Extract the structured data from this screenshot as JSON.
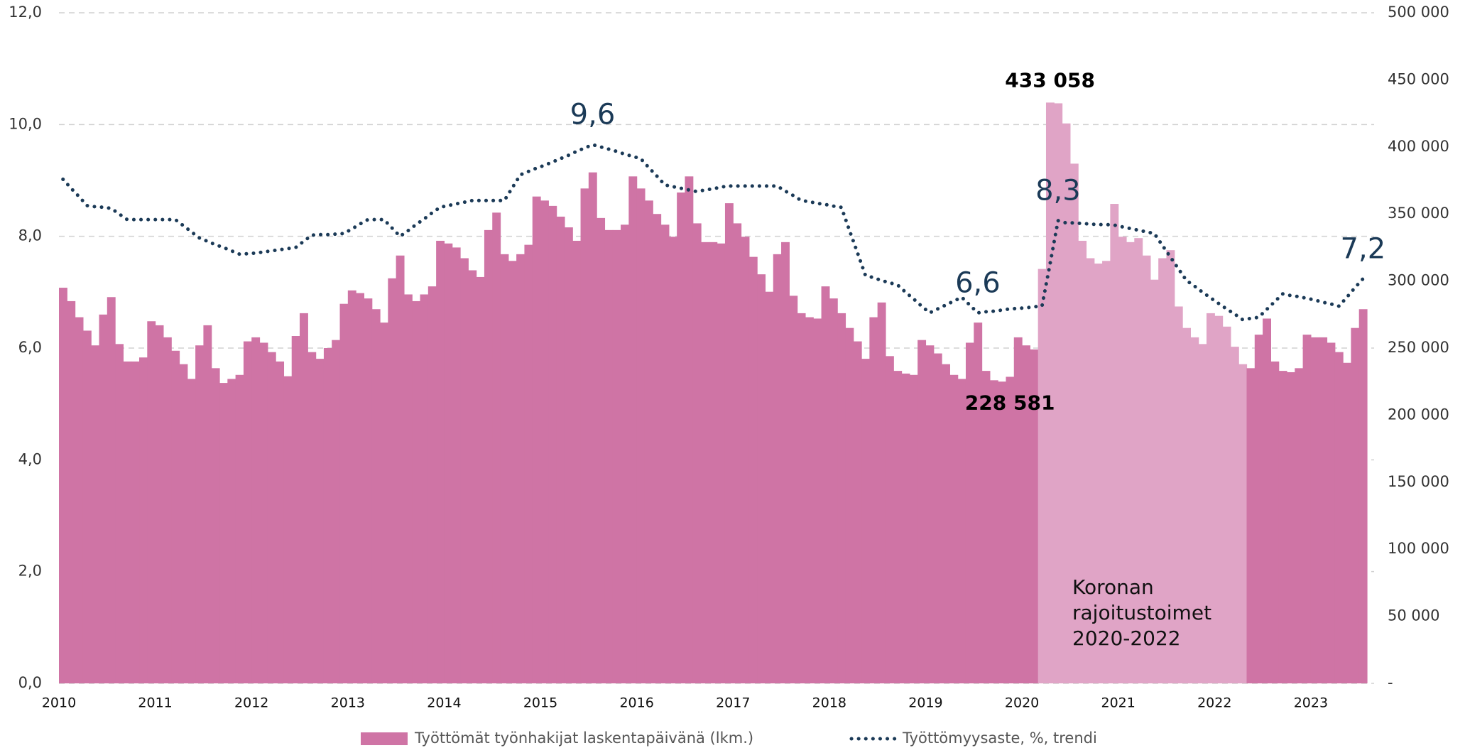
{
  "chart_data": {
    "type": "bar",
    "categories": [
      "2010",
      null,
      null,
      null,
      null,
      null,
      null,
      null,
      null,
      null,
      null,
      null,
      "2011",
      null,
      null,
      null,
      null,
      null,
      null,
      null,
      null,
      null,
      null,
      null,
      "2012",
      null,
      null,
      null,
      null,
      null,
      null,
      null,
      null,
      null,
      null,
      null,
      "2013",
      null,
      null,
      null,
      null,
      null,
      null,
      null,
      null,
      null,
      null,
      null,
      "2014",
      null,
      null,
      null,
      null,
      null,
      null,
      null,
      null,
      null,
      null,
      null,
      "2015",
      null,
      null,
      null,
      null,
      null,
      null,
      null,
      null,
      null,
      null,
      null,
      "2016",
      null,
      null,
      null,
      null,
      null,
      null,
      null,
      null,
      null,
      null,
      null,
      "2017",
      null,
      null,
      null,
      null,
      null,
      null,
      null,
      null,
      null,
      null,
      null,
      "2018",
      null,
      null,
      null,
      null,
      null,
      null,
      null,
      null,
      null,
      null,
      null,
      "2019",
      null,
      null,
      null,
      null,
      null,
      null,
      null,
      null,
      null,
      null,
      null,
      "2020",
      null,
      null,
      null,
      null,
      null,
      null,
      null,
      null,
      null,
      null,
      null,
      "2021",
      null,
      null,
      null,
      null,
      null,
      null,
      null,
      null,
      null,
      null,
      null,
      "2022",
      null,
      null,
      null,
      null,
      null,
      null,
      null,
      null,
      null,
      null,
      null,
      "2023",
      null,
      null,
      null,
      null,
      null,
      null
    ],
    "ylim": [
      0,
      12
    ],
    "yticks": [
      {
        "value": 0,
        "label": "0,0"
      },
      {
        "value": 2,
        "label": "2,0"
      },
      {
        "value": 4,
        "label": "4,0"
      },
      {
        "value": 6,
        "label": "6,0"
      },
      {
        "value": 8,
        "label": "8,0"
      },
      {
        "value": 10,
        "label": "10,0"
      },
      {
        "value": 12,
        "label": "12,0"
      }
    ],
    "y2lim": [
      0,
      500000
    ],
    "y2ticks": [
      {
        "value": 0,
        "label": "-"
      },
      {
        "value": 50000,
        "label": "50 000"
      },
      {
        "value": 100000,
        "label": "100 000"
      },
      {
        "value": 150000,
        "label": "150 000"
      },
      {
        "value": 200000,
        "label": "200 000"
      },
      {
        "value": 250000,
        "label": "250 000"
      },
      {
        "value": 300000,
        "label": "300 000"
      },
      {
        "value": 350000,
        "label": "350 000"
      },
      {
        "value": 400000,
        "label": "400 000"
      },
      {
        "value": 450000,
        "label": "450 000"
      },
      {
        "value": 500000,
        "label": "500 000"
      }
    ],
    "grid": true,
    "legend": "bottom",
    "annotations": [
      {
        "lines": [
          "Koronan",
          "rajoitustoimet",
          "2020-2022"
        ]
      }
    ],
    "series": [
      {
        "name": "Työttömät työnhakijat laskentapäivänä (lkm.)",
        "type": "bar",
        "axis": "y2",
        "color": "#cf74a5",
        "colors": [
          "#cf74a5",
          "#cf74a5",
          "#cf74a5",
          "#cf74a5",
          "#cf74a5",
          "#cf74a5",
          "#cf74a5",
          "#cf74a5",
          "#cf74a5",
          "#cf74a5",
          "#cf74a5",
          "#cf74a5",
          "#cf74a5",
          "#cf74a5",
          "#cf74a5",
          "#cf74a5",
          "#cf74a5",
          "#cf74a5",
          "#cf74a5",
          "#cf74a5",
          "#cf74a5",
          "#cf74a5",
          "#cf74a5",
          "#cf74a5",
          "#cf74a5",
          "#cf74a5",
          "#cf74a5",
          "#cf74a5",
          "#cf74a5",
          "#cf74a5",
          "#cf74a5",
          "#cf74a5",
          "#cf74a5",
          "#cf74a5",
          "#cf74a5",
          "#cf74a5",
          "#cf74a5",
          "#cf74a5",
          "#cf74a5",
          "#cf74a5",
          "#cf74a5",
          "#cf74a5",
          "#cf74a5",
          "#cf74a5",
          "#cf74a5",
          "#cf74a5",
          "#cf74a5",
          "#cf74a5",
          "#cf74a5",
          "#cf74a5",
          "#cf74a5",
          "#cf74a5",
          "#cf74a5",
          "#cf74a5",
          "#cf74a5",
          "#cf74a5",
          "#cf74a5",
          "#cf74a5",
          "#cf74a5",
          "#cf74a5",
          "#cf74a5",
          "#cf74a5",
          "#cf74a5",
          "#cf74a5",
          "#cf74a5",
          "#cf74a5",
          "#cf74a5",
          "#cf74a5",
          "#cf74a5",
          "#cf74a5",
          "#cf74a5",
          "#cf74a5",
          "#cf74a5",
          "#cf74a5",
          "#cf74a5",
          "#cf74a5",
          "#cf74a5",
          "#cf74a5",
          "#cf74a5",
          "#cf74a5",
          "#cf74a5",
          "#cf74a5",
          "#cf74a5",
          "#cf74a5",
          "#cf74a5",
          "#cf74a5",
          "#cf74a5",
          "#cf74a5",
          "#cf74a5",
          "#cf74a5",
          "#cf74a5",
          "#cf74a5",
          "#cf74a5",
          "#cf74a5",
          "#cf74a5",
          "#cf74a5",
          "#cf74a5",
          "#cf74a5",
          "#cf74a5",
          "#cf74a5",
          "#cf74a5",
          "#cf74a5",
          "#cf74a5",
          "#cf74a5",
          "#cf74a5",
          "#cf74a5",
          "#cf74a5",
          "#cf74a5",
          "#cf74a5",
          "#cf74a5",
          "#cf74a5",
          "#cf74a5",
          "#cf74a5",
          "#cf74a5",
          "#cf74a5",
          "#cf74a5",
          "#cf74a5",
          "#cf74a5",
          "#cf74a5",
          "#cf74a5",
          "#cf74a5",
          "#cf74a5",
          "#e0a4c6",
          "#e0a4c6",
          "#e0a4c6",
          "#e0a4c6",
          "#e0a4c6",
          "#e0a4c6",
          "#e0a4c6",
          "#e0a4c6",
          "#e0a4c6",
          "#e0a4c6",
          "#e0a4c6",
          "#e0a4c6",
          "#e0a4c6",
          "#e0a4c6",
          "#e0a4c6",
          "#e0a4c6",
          "#e0a4c6",
          "#e0a4c6",
          "#e0a4c6",
          "#e0a4c6",
          "#e0a4c6",
          "#e0a4c6",
          "#e0a4c6",
          "#e0a4c6",
          "#e0a4c6",
          "#e0a4c6",
          "#cf74a5",
          "#cf74a5",
          "#cf74a5",
          "#cf74a5",
          "#cf74a5",
          "#cf74a5",
          "#cf74a5",
          "#cf74a5",
          "#cf74a5",
          "#cf74a5",
          "#cf74a5",
          "#cf74a5",
          "#cf74a5",
          "#cf74a5",
          "#cf74a5"
        ],
        "values": [
          295000,
          285000,
          273000,
          263000,
          252000,
          275000,
          288000,
          253000,
          240000,
          240000,
          243000,
          270000,
          267000,
          258000,
          248000,
          238000,
          227000,
          252000,
          267000,
          235000,
          224000,
          227000,
          230000,
          255000,
          258000,
          254000,
          247000,
          240000,
          229000,
          259000,
          276000,
          247000,
          242000,
          250000,
          256000,
          283000,
          293000,
          291000,
          287000,
          279000,
          269000,
          302000,
          319000,
          290000,
          285000,
          290000,
          296000,
          330000,
          328000,
          325000,
          317000,
          308000,
          303000,
          338000,
          351000,
          320000,
          315000,
          320000,
          327000,
          363000,
          360000,
          356000,
          348000,
          340000,
          330000,
          369000,
          381000,
          347000,
          338000,
          338000,
          342000,
          378000,
          369000,
          360000,
          350000,
          342000,
          333000,
          366000,
          378000,
          343000,
          329000,
          329000,
          328000,
          358000,
          343000,
          333000,
          318000,
          305000,
          292000,
          320000,
          329000,
          289000,
          276000,
          273000,
          272000,
          296000,
          287000,
          276000,
          265000,
          255000,
          242000,
          273000,
          284000,
          244000,
          233000,
          231000,
          230000,
          256000,
          252000,
          246000,
          238000,
          230000,
          227000,
          254000,
          269000,
          233000,
          226000,
          225000,
          228581,
          258000,
          252000,
          249000,
          309000,
          433058,
          432500,
          417500,
          387500,
          330000,
          317000,
          313000,
          315000,
          357500,
          333000,
          329000,
          332000,
          319000,
          301000,
          317000,
          323000,
          281000,
          265000,
          258000,
          253000,
          276000,
          274000,
          266000,
          251000,
          238000,
          235000,
          260000,
          272000,
          240000,
          233000,
          232000,
          235000,
          260000,
          258000,
          258000,
          254000,
          247000,
          239000,
          265000,
          279000
        ],
        "value_labels": [
          null,
          null,
          null,
          null,
          null,
          null,
          null,
          null,
          null,
          null,
          null,
          null,
          null,
          null,
          null,
          null,
          null,
          null,
          null,
          null,
          null,
          null,
          null,
          null,
          null,
          null,
          null,
          null,
          null,
          null,
          null,
          null,
          null,
          null,
          null,
          null,
          null,
          null,
          null,
          null,
          null,
          null,
          null,
          null,
          null,
          null,
          null,
          null,
          null,
          null,
          null,
          null,
          null,
          null,
          null,
          null,
          null,
          null,
          null,
          null,
          null,
          null,
          null,
          null,
          null,
          null,
          null,
          null,
          null,
          null,
          null,
          null,
          null,
          null,
          null,
          null,
          null,
          null,
          null,
          null,
          null,
          null,
          null,
          null,
          null,
          null,
          null,
          null,
          null,
          null,
          null,
          null,
          null,
          null,
          null,
          null,
          null,
          null,
          null,
          null,
          null,
          null,
          null,
          null,
          null,
          null,
          null,
          null,
          null,
          null,
          null,
          null,
          null,
          null,
          null,
          null,
          null,
          null,
          "228 581",
          null,
          null,
          null,
          null,
          "433 058",
          null,
          null,
          null,
          null,
          null,
          null,
          null,
          null,
          null,
          null,
          null,
          null,
          null,
          null,
          null,
          null,
          null,
          null,
          null,
          null,
          null,
          null,
          null,
          null,
          null,
          null,
          null,
          null,
          null,
          null,
          null,
          null,
          null,
          null,
          null,
          null,
          null,
          null,
          null
        ]
      },
      {
        "name": "Työttömyysaste, %, trendi",
        "type": "line",
        "color": "#1b3a57",
        "values": [
          9.02,
          8.86,
          8.71,
          8.55,
          8.53,
          8.52,
          8.5,
          8.4,
          8.3,
          8.3,
          8.3,
          8.3,
          8.3,
          8.3,
          8.3,
          8.19,
          8.08,
          7.97,
          7.91,
          7.85,
          7.8,
          7.74,
          7.68,
          7.69,
          7.7,
          7.72,
          7.74,
          7.76,
          7.78,
          7.8,
          7.91,
          8.02,
          8.03,
          8.03,
          8.04,
          8.05,
          8.13,
          8.22,
          8.3,
          8.3,
          8.3,
          8.15,
          8.0,
          8.1,
          8.21,
          8.31,
          8.42,
          8.52,
          8.55,
          8.58,
          8.61,
          8.64,
          8.64,
          8.64,
          8.64,
          8.64,
          8.87,
          9.1,
          9.16,
          9.22,
          9.27,
          9.33,
          9.39,
          9.45,
          9.52,
          9.58,
          9.64,
          9.6,
          9.56,
          9.52,
          9.47,
          9.43,
          9.39,
          9.23,
          9.08,
          8.92,
          8.89,
          8.86,
          8.83,
          8.8,
          8.83,
          8.85,
          8.88,
          8.9,
          8.9,
          8.9,
          8.9,
          8.9,
          8.9,
          8.9,
          8.81,
          8.73,
          8.64,
          8.62,
          8.59,
          8.57,
          8.54,
          8.52,
          8.11,
          7.71,
          7.3,
          7.26,
          7.21,
          7.17,
          7.13,
          7.0,
          6.88,
          6.75,
          6.63,
          6.7,
          6.77,
          6.84,
          6.91,
          6.77,
          6.63,
          6.65,
          6.66,
          6.68,
          6.7,
          6.71,
          6.72,
          6.74,
          6.75,
          7.5,
          8.28,
          8.24,
          8.24,
          8.23,
          8.22,
          8.21,
          8.21,
          8.2,
          8.17,
          8.14,
          8.11,
          8.08,
          8.05,
          7.84,
          7.63,
          7.42,
          7.21,
          7.11,
          7.0,
          6.9,
          6.8,
          6.7,
          6.61,
          6.51,
          6.53,
          6.55,
          6.69,
          6.83,
          6.97,
          6.94,
          6.92,
          6.89,
          6.86,
          6.82,
          6.79,
          6.75,
          6.91,
          7.08,
          7.24
        ],
        "value_labels": [
          null,
          null,
          null,
          null,
          null,
          null,
          null,
          null,
          null,
          null,
          null,
          null,
          null,
          null,
          null,
          null,
          null,
          null,
          null,
          null,
          null,
          null,
          null,
          null,
          null,
          null,
          null,
          null,
          null,
          null,
          null,
          null,
          null,
          null,
          null,
          null,
          null,
          null,
          null,
          null,
          null,
          null,
          null,
          null,
          null,
          null,
          null,
          null,
          null,
          null,
          null,
          null,
          null,
          null,
          null,
          null,
          null,
          null,
          null,
          null,
          null,
          null,
          null,
          null,
          null,
          null,
          "9,6",
          null,
          null,
          null,
          null,
          null,
          null,
          null,
          null,
          null,
          null,
          null,
          null,
          null,
          null,
          null,
          null,
          null,
          null,
          null,
          null,
          null,
          null,
          null,
          null,
          null,
          null,
          null,
          null,
          null,
          null,
          null,
          null,
          null,
          null,
          null,
          null,
          null,
          null,
          null,
          null,
          null,
          null,
          null,
          null,
          null,
          null,
          null,
          "6,6",
          null,
          null,
          null,
          null,
          null,
          null,
          null,
          null,
          null,
          "8,3",
          null,
          null,
          null,
          null,
          null,
          null,
          null,
          null,
          null,
          null,
          null,
          null,
          null,
          null,
          null,
          null,
          null,
          null,
          null,
          null,
          null,
          null,
          null,
          null,
          null,
          null,
          null,
          null,
          null,
          null,
          null,
          null,
          null,
          null,
          null,
          null,
          null,
          "7,2"
        ]
      }
    ]
  }
}
